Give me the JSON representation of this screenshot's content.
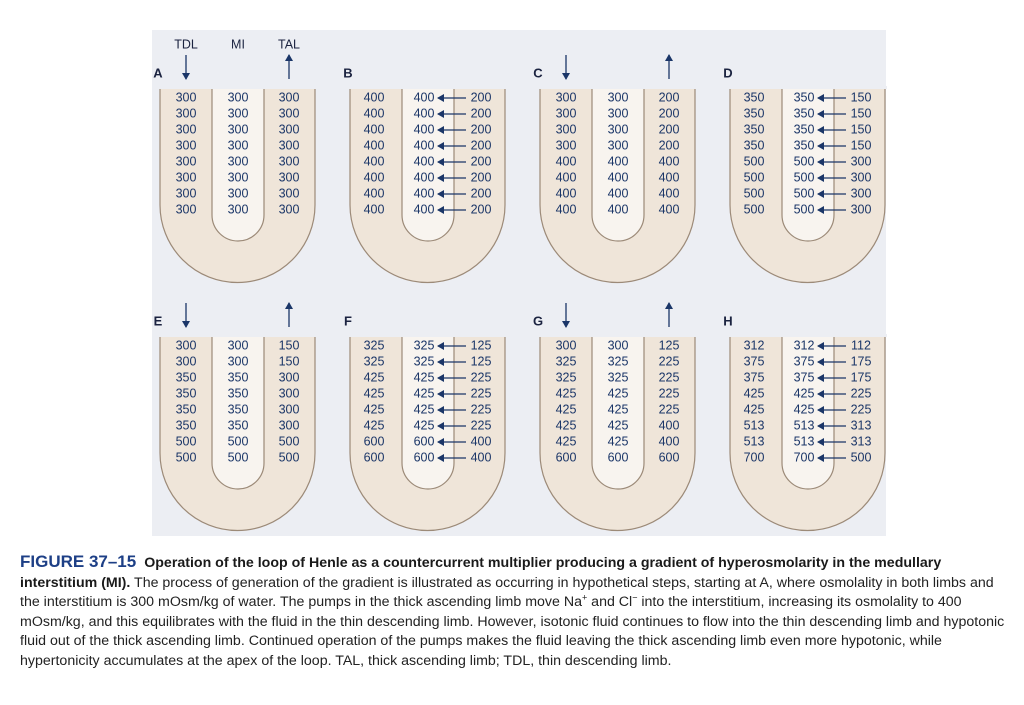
{
  "panels": [
    {
      "label": "A",
      "headers": [
        "TDL",
        "MI",
        "TAL"
      ],
      "flow_arrows": true,
      "pump_arrows": false,
      "rows": [
        [
          300,
          300,
          300
        ],
        [
          300,
          300,
          300
        ],
        [
          300,
          300,
          300
        ],
        [
          300,
          300,
          300
        ],
        [
          300,
          300,
          300
        ],
        [
          300,
          300,
          300
        ],
        [
          300,
          300,
          300
        ],
        [
          300,
          300,
          300
        ]
      ]
    },
    {
      "label": "B",
      "flow_arrows": false,
      "pump_arrows": true,
      "rows": [
        [
          400,
          400,
          200
        ],
        [
          400,
          400,
          200
        ],
        [
          400,
          400,
          200
        ],
        [
          400,
          400,
          200
        ],
        [
          400,
          400,
          200
        ],
        [
          400,
          400,
          200
        ],
        [
          400,
          400,
          200
        ],
        [
          400,
          400,
          200
        ]
      ]
    },
    {
      "label": "C",
      "flow_arrows": true,
      "pump_arrows": false,
      "rows": [
        [
          300,
          300,
          200
        ],
        [
          300,
          300,
          200
        ],
        [
          300,
          300,
          200
        ],
        [
          300,
          300,
          200
        ],
        [
          400,
          400,
          400
        ],
        [
          400,
          400,
          400
        ],
        [
          400,
          400,
          400
        ],
        [
          400,
          400,
          400
        ]
      ]
    },
    {
      "label": "D",
      "flow_arrows": false,
      "pump_arrows": true,
      "rows": [
        [
          350,
          350,
          150
        ],
        [
          350,
          350,
          150
        ],
        [
          350,
          350,
          150
        ],
        [
          350,
          350,
          150
        ],
        [
          500,
          500,
          300
        ],
        [
          500,
          500,
          300
        ],
        [
          500,
          500,
          300
        ],
        [
          500,
          500,
          300
        ]
      ]
    },
    {
      "label": "E",
      "flow_arrows": true,
      "pump_arrows": false,
      "rows": [
        [
          300,
          300,
          150
        ],
        [
          300,
          300,
          150
        ],
        [
          350,
          350,
          300
        ],
        [
          350,
          350,
          300
        ],
        [
          350,
          350,
          300
        ],
        [
          350,
          350,
          300
        ],
        [
          500,
          500,
          500
        ],
        [
          500,
          500,
          500
        ]
      ]
    },
    {
      "label": "F",
      "flow_arrows": false,
      "pump_arrows": true,
      "rows": [
        [
          325,
          325,
          125
        ],
        [
          325,
          325,
          125
        ],
        [
          425,
          425,
          225
        ],
        [
          425,
          425,
          225
        ],
        [
          425,
          425,
          225
        ],
        [
          425,
          425,
          225
        ],
        [
          600,
          600,
          400
        ],
        [
          600,
          600,
          400
        ]
      ]
    },
    {
      "label": "G",
      "flow_arrows": true,
      "pump_arrows": false,
      "rows": [
        [
          300,
          300,
          125
        ],
        [
          325,
          325,
          225
        ],
        [
          325,
          325,
          225
        ],
        [
          425,
          425,
          225
        ],
        [
          425,
          425,
          225
        ],
        [
          425,
          425,
          400
        ],
        [
          425,
          425,
          400
        ],
        [
          600,
          600,
          600
        ]
      ]
    },
    {
      "label": "H",
      "flow_arrows": false,
      "pump_arrows": true,
      "rows": [
        [
          312,
          312,
          112
        ],
        [
          375,
          375,
          175
        ],
        [
          375,
          375,
          175
        ],
        [
          425,
          425,
          225
        ],
        [
          425,
          425,
          225
        ],
        [
          513,
          513,
          313
        ],
        [
          513,
          513,
          313
        ],
        [
          700,
          700,
          500
        ]
      ]
    }
  ],
  "caption": {
    "label": "FIGURE 37–15",
    "heading": "Operation of the loop of Henle as a countercurrent multiplier producing a gradient of hyperosmolarity in the medullary interstitium (MI).",
    "body": [
      " The process of generation of the gradient is illustrated as occurring in hypothetical steps, starting at A, where osmolality in both limbs and the interstitium is 300 mOsm/kg of water. The pumps in the thick ascending limb move Na",
      "+",
      " and Cl",
      "−",
      " into the interstitium, increasing its osmolality to 400 mOsm/kg, and this equilibrates with the fluid in the thin descending limb. However, isotonic fluid continues to flow into the thin descending limb and hypotonic fluid out of the thick ascending limb. Continued operation of the pumps makes the fluid leaving the thick ascending limb even more hypotonic, while hypertonicity accumulates at the apex of the loop. TAL, thick ascending limb; TDL, thin descending limb."
    ]
  }
}
